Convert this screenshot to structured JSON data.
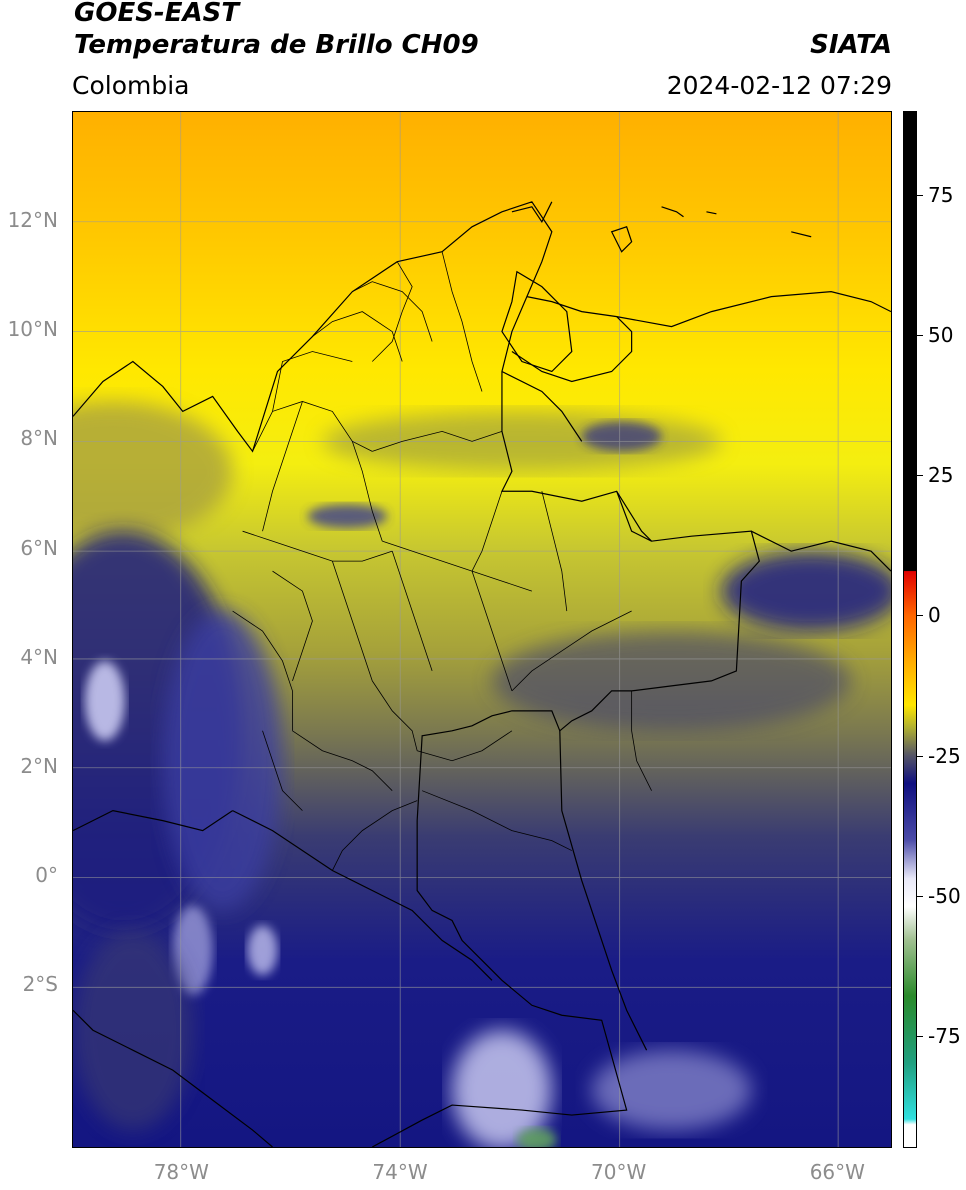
{
  "header": {
    "line1": "GOES-EAST",
    "line2": "Temperatura de Brillo CH09",
    "agency": "SIATA",
    "region": "Colombia",
    "timestamp": "2024-02-12 07:29"
  },
  "map": {
    "lat_ticks": [
      {
        "label": "12°N",
        "value": 12
      },
      {
        "label": "10°N",
        "value": 10
      },
      {
        "label": "8°N",
        "value": 8
      },
      {
        "label": "6°N",
        "value": 6
      },
      {
        "label": "4°N",
        "value": 4
      },
      {
        "label": "2°N",
        "value": 2
      },
      {
        "label": "0°",
        "value": 0
      },
      {
        "label": "2°S",
        "value": -2
      }
    ],
    "lon_ticks": [
      {
        "label": "78°W",
        "value": -78
      },
      {
        "label": "74°W",
        "value": -74
      },
      {
        "label": "70°W",
        "value": -70
      },
      {
        "label": "66°W",
        "value": -66
      }
    ],
    "extent": {
      "lon_min": -80,
      "lon_max": -65,
      "lat_min": -5,
      "lat_max": 14
    }
  },
  "colorbar": {
    "range": [
      -95,
      90
    ],
    "ticks": [
      {
        "label": "75",
        "value": 75
      },
      {
        "label": "50",
        "value": 50
      },
      {
        "label": "25",
        "value": 25
      },
      {
        "label": "0",
        "value": 0
      },
      {
        "label": "-25",
        "value": -25
      },
      {
        "label": "-50",
        "value": -50
      },
      {
        "label": "-75",
        "value": -75
      }
    ],
    "stops": [
      {
        "value": 90,
        "color": "#000000"
      },
      {
        "value": 8,
        "color": "#000000"
      },
      {
        "value": 7.9,
        "color": "#e00000"
      },
      {
        "value": 0,
        "color": "#ff6600"
      },
      {
        "value": -8,
        "color": "#ffaa00"
      },
      {
        "value": -16,
        "color": "#ffe600"
      },
      {
        "value": -20,
        "color": "#b0b030"
      },
      {
        "value": -25,
        "color": "#555566"
      },
      {
        "value": -30,
        "color": "#101080"
      },
      {
        "value": -40,
        "color": "#4a4aa8"
      },
      {
        "value": -47,
        "color": "#e8e8f8"
      },
      {
        "value": -52,
        "color": "#ffffff"
      },
      {
        "value": -58,
        "color": "#a0c090"
      },
      {
        "value": -68,
        "color": "#2a8a2a"
      },
      {
        "value": -80,
        "color": "#20a080"
      },
      {
        "value": -90,
        "color": "#30e0e0"
      },
      {
        "value": -91,
        "color": "#ffffff"
      },
      {
        "value": -95,
        "color": "#ffffff"
      }
    ]
  }
}
